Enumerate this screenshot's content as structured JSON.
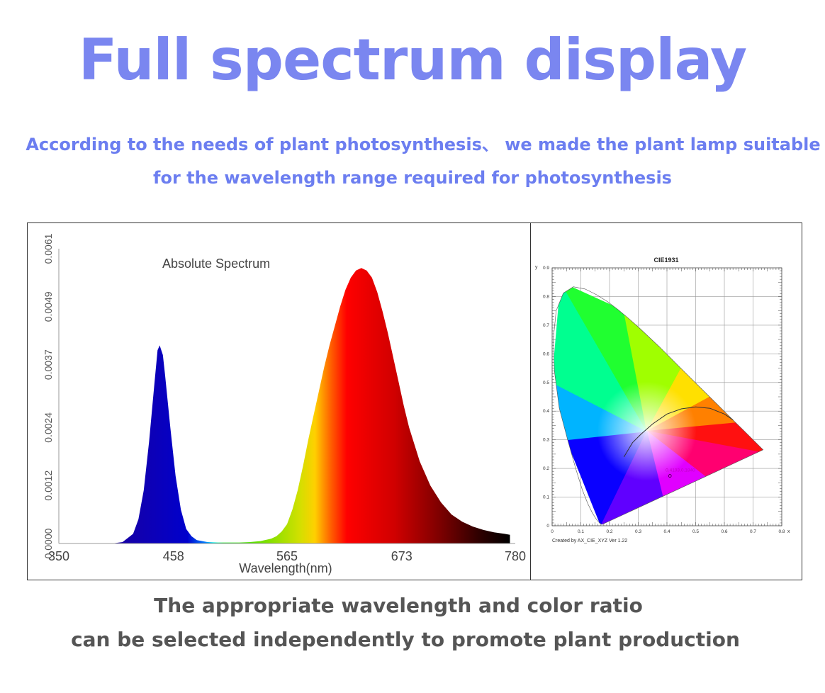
{
  "header": {
    "title": "Full spectrum display",
    "subtitle_line1": "According to the needs of plant photosynthesis、 we made the plant lamp suitable",
    "subtitle_line2": "for the wavelength range required for photosynthesis"
  },
  "footer": {
    "line1": "The appropriate wavelength and color ratio",
    "line2": "can be selected independently to promote plant production"
  },
  "chart_data": [
    {
      "type": "area",
      "title": "Absolute Spectrum",
      "xlabel": "Wavelength(nm)",
      "ylabel": "",
      "xlim": [
        350,
        780
      ],
      "ylim": [
        0,
        0.0061
      ],
      "x_ticks": [
        "350",
        "458",
        "565",
        "673",
        "780"
      ],
      "y_ticks": [
        "0.0000",
        "0.0012",
        "0.0024",
        "0.0037",
        "0.0049",
        "0.0061"
      ],
      "series": [
        {
          "x": [
            400,
            410,
            420,
            425,
            430,
            435,
            440,
            443,
            445,
            448,
            450,
            455,
            460,
            465,
            470,
            475,
            480,
            490,
            500,
            510,
            520,
            530,
            540,
            550,
            555,
            560,
            565,
            570,
            575,
            580,
            585,
            590,
            595,
            600,
            605,
            610,
            615,
            620,
            625,
            630,
            635,
            640,
            645,
            650,
            655,
            660,
            665,
            670,
            675,
            680,
            690,
            700,
            710,
            720,
            730,
            740,
            750,
            760,
            770,
            775
          ],
          "y": [
            0.0,
            3e-05,
            0.0002,
            0.0005,
            0.0011,
            0.0021,
            0.0033,
            0.004,
            0.0041,
            0.0039,
            0.0035,
            0.0024,
            0.0014,
            0.0007,
            0.0003,
            0.00015,
            7e-05,
            3e-05,
            2e-05,
            2e-05,
            2e-05,
            3e-05,
            5e-05,
            0.0001,
            0.00015,
            0.00025,
            0.0004,
            0.0007,
            0.0011,
            0.0016,
            0.00215,
            0.00265,
            0.00315,
            0.00365,
            0.0041,
            0.0045,
            0.0049,
            0.00525,
            0.0055,
            0.00565,
            0.0057,
            0.00565,
            0.0055,
            0.0052,
            0.0048,
            0.00435,
            0.00385,
            0.00335,
            0.00285,
            0.0024,
            0.0017,
            0.0012,
            0.00085,
            0.0006,
            0.00045,
            0.00035,
            0.00028,
            0.00023,
            0.0002,
            0.00018
          ]
        }
      ],
      "grid": false
    },
    {
      "type": "scatter",
      "title": "CIE1931",
      "xlabel": "x",
      "ylabel": "y",
      "xlim": [
        0,
        0.8
      ],
      "ylim": [
        0,
        0.9
      ],
      "x_ticks": [
        "0",
        "0.1",
        "0.2",
        "0.3",
        "0.4",
        "0.5",
        "0.6",
        "0.7",
        "0.8"
      ],
      "y_ticks": [
        "0",
        "0.1",
        "0.2",
        "0.3",
        "0.4",
        "0.5",
        "0.6",
        "0.7",
        "0.8",
        "0.9"
      ],
      "grid": true,
      "point": {
        "x": 0.4103,
        "y": 0.184,
        "label": "0.4103,0.1840"
      },
      "footnote": "Created by AX_CIE_XYZ Ver 1.22"
    }
  ]
}
